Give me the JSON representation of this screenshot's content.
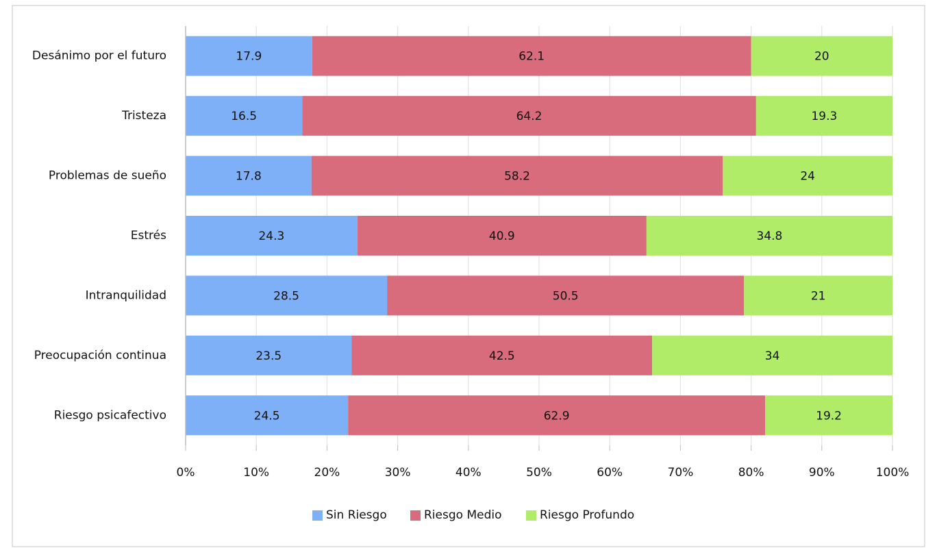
{
  "chart_data": {
    "type": "bar",
    "orientation": "horizontal",
    "stacking": "percent",
    "categories": [
      "Desánimo por el futuro",
      "Tristeza",
      "Problemas de sueño",
      "Estrés",
      "Intranquilidad",
      "Preocupación continua",
      "Riesgo psicafectivo"
    ],
    "series": [
      {
        "name": "Sin Riesgo",
        "color": "#7eb0f7",
        "values": [
          17.9,
          16.5,
          17.8,
          24.3,
          28.5,
          23.5,
          24.5
        ]
      },
      {
        "name": "Riesgo Medio",
        "color": "#d86b7c",
        "values": [
          62.1,
          64.2,
          58.2,
          40.9,
          50.5,
          42.5,
          62.9
        ]
      },
      {
        "name": "Riesgo Profundo",
        "color": "#b0ec68",
        "values": [
          20,
          19.3,
          24,
          34.8,
          21,
          34,
          19.2
        ]
      }
    ],
    "xlim": [
      0,
      100
    ],
    "xticks": [
      {
        "value": 0,
        "label": "0%"
      },
      {
        "value": 10,
        "label": "10%"
      },
      {
        "value": 20,
        "label": "20%"
      },
      {
        "value": 30,
        "label": "30%"
      },
      {
        "value": 40,
        "label": "40%"
      },
      {
        "value": 50,
        "label": "50%"
      },
      {
        "value": 60,
        "label": "60%"
      },
      {
        "value": 70,
        "label": "70%"
      },
      {
        "value": 80,
        "label": "80%"
      },
      {
        "value": 90,
        "label": "90%"
      },
      {
        "value": 100,
        "label": "100%"
      }
    ],
    "grid": true,
    "legend": "bottom"
  }
}
